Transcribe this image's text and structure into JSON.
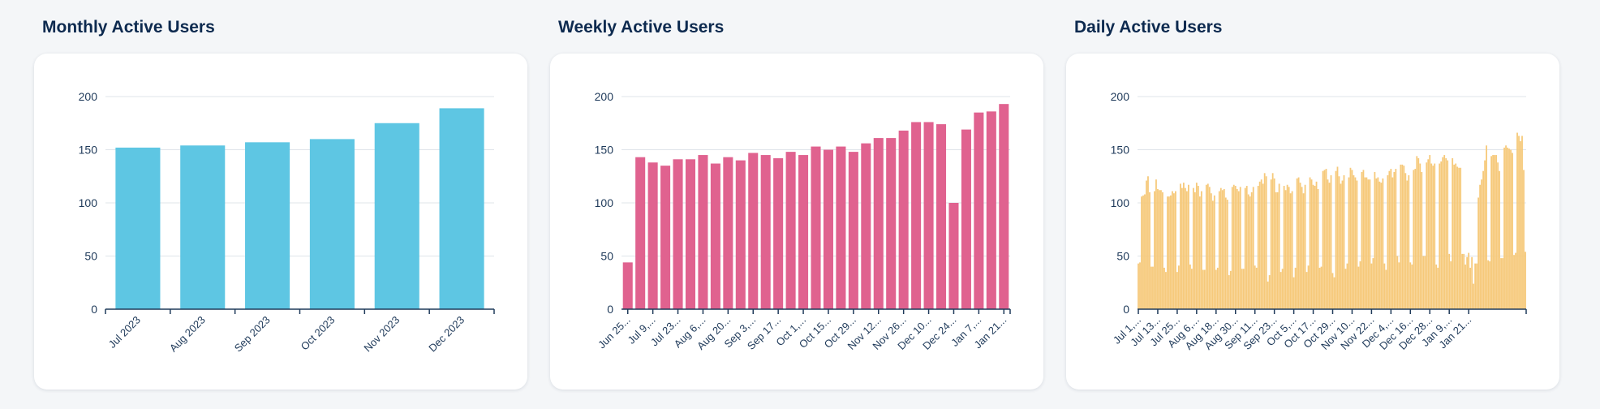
{
  "panels": {
    "monthly": {
      "title": "Monthly Active Users"
    },
    "weekly": {
      "title": "Weekly Active Users"
    },
    "daily": {
      "title": "Daily Active Users"
    }
  },
  "chart_data": [
    {
      "id": "monthly",
      "type": "bar",
      "title": "Monthly Active Users",
      "color": "#5ec6e3",
      "ylim": [
        0,
        200
      ],
      "yticks": [
        0,
        50,
        100,
        150,
        200
      ],
      "grid": true,
      "categories": [
        "Jul 2023",
        "Aug 2023",
        "Sep 2023",
        "Oct 2023",
        "Nov 2023",
        "Dec 2023"
      ],
      "values": [
        152,
        154,
        157,
        160,
        175,
        189
      ],
      "xticklabels": [
        "Jul 2023",
        "Aug 2023",
        "Sep 2023",
        "Oct 2023",
        "Nov 2023",
        "Dec 2023"
      ]
    },
    {
      "id": "weekly",
      "type": "bar",
      "title": "Weekly Active Users",
      "color": "#e0628f",
      "ylim": [
        0,
        200
      ],
      "yticks": [
        0,
        50,
        100,
        150,
        200
      ],
      "grid": true,
      "values": [
        44,
        143,
        138,
        135,
        141,
        141,
        145,
        137,
        143,
        140,
        147,
        145,
        142,
        148,
        145,
        153,
        150,
        153,
        148,
        156,
        161,
        161,
        168,
        176,
        176,
        174,
        100,
        169,
        185,
        186,
        193
      ],
      "xticklabels": [
        "Jun 25...",
        "Jul 9,...",
        "Jul 23...",
        "Aug 6,...",
        "Aug 20...",
        "Sep 3,...",
        "Sep 17...",
        "Oct 1,...",
        "Oct 15...",
        "Oct 29...",
        "Nov 12...",
        "Nov 26...",
        "Dec 10...",
        "Dec 24...",
        "Jan 7,...",
        "Jan 21..."
      ],
      "xtick_every": 2
    },
    {
      "id": "daily",
      "type": "bar",
      "title": "Daily Active Users",
      "color": "#f6c97a",
      "ylim": [
        0,
        200
      ],
      "yticks": [
        0,
        50,
        100,
        150,
        200
      ],
      "grid": true,
      "values": [
        43,
        44,
        106,
        107,
        108,
        121,
        125,
        110,
        40,
        40,
        111,
        122,
        113,
        112,
        112,
        110,
        39,
        35,
        106,
        106,
        107,
        111,
        109,
        111,
        35,
        41,
        118,
        114,
        119,
        114,
        111,
        117,
        42,
        38,
        114,
        110,
        119,
        116,
        106,
        111,
        37,
        37,
        117,
        118,
        115,
        109,
        102,
        107,
        37,
        39,
        111,
        114,
        112,
        113,
        105,
        103,
        32,
        36,
        115,
        117,
        116,
        113,
        111,
        115,
        38,
        38,
        114,
        116,
        108,
        106,
        110,
        115,
        41,
        39,
        116,
        120,
        122,
        118,
        128,
        125,
        26,
        32,
        122,
        128,
        123,
        110,
        110,
        118,
        35,
        38,
        116,
        112,
        117,
        115,
        109,
        111,
        30,
        39,
        123,
        124,
        119,
        115,
        109,
        117,
        35,
        41,
        124,
        122,
        117,
        116,
        120,
        113,
        39,
        40,
        130,
        131,
        132,
        122,
        119,
        126,
        34,
        30,
        130,
        134,
        125,
        118,
        121,
        126,
        38,
        43,
        124,
        133,
        131,
        126,
        124,
        121,
        40,
        45,
        129,
        131,
        124,
        124,
        122,
        122,
        43,
        48,
        129,
        123,
        124,
        120,
        119,
        123,
        43,
        37,
        126,
        130,
        132,
        124,
        129,
        132,
        50,
        44,
        136,
        136,
        135,
        128,
        121,
        126,
        44,
        42,
        131,
        132,
        144,
        142,
        137,
        129,
        50,
        50,
        138,
        141,
        145,
        137,
        135,
        137,
        42,
        39,
        137,
        139,
        143,
        145,
        142,
        140,
        52,
        45,
        142,
        136,
        137,
        134,
        133,
        133,
        52,
        52,
        42,
        49,
        53,
        39,
        49,
        24,
        43,
        43,
        105,
        117,
        122,
        130,
        140,
        154,
        46,
        45,
        144,
        145,
        145,
        145,
        138,
        130,
        48,
        48,
        152,
        154,
        152,
        151,
        150,
        147,
        51,
        53,
        166,
        163,
        158,
        163,
        131,
        54
      ],
      "xticklabels": [
        "Jul 1,...",
        "Jul 13...",
        "Jul 25...",
        "Aug 6,...",
        "Aug 18...",
        "Aug 30...",
        "Sep 11...",
        "Sep 23...",
        "Oct 5,...",
        "Oct 17...",
        "Oct 29...",
        "Nov 10...",
        "Nov 22...",
        "Dec 4,...",
        "Dec 16...",
        "Dec 28...",
        "Jan 9,...",
        "Jan 21..."
      ],
      "xtick_every": 12
    }
  ]
}
